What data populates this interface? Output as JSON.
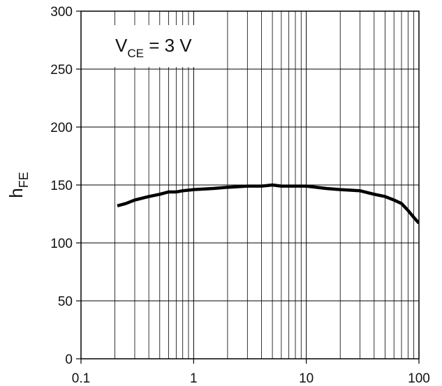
{
  "chart_data": {
    "type": "line",
    "title": "",
    "xlabel": "",
    "ylabel": {
      "main": "h",
      "sub": "FE"
    },
    "annotation": {
      "main": "V",
      "sub": "CE",
      "rest": " = 3 V"
    },
    "x_scale": "log",
    "xlim": [
      0.1,
      100
    ],
    "ylim": [
      0,
      300
    ],
    "x_ticks": [
      0.1,
      1,
      10,
      100
    ],
    "x_tick_labels": [
      "0.1",
      "1",
      "10",
      "100"
    ],
    "y_ticks": [
      0,
      50,
      100,
      150,
      200,
      250,
      300
    ],
    "y_tick_labels": [
      "0",
      "50",
      "100",
      "150",
      "200",
      "250",
      "300"
    ],
    "grid": true,
    "series": [
      {
        "x": [
          0.21,
          0.25,
          0.3,
          0.4,
          0.5,
          0.6,
          0.7,
          0.8,
          1,
          1.5,
          2,
          3,
          4,
          5,
          6,
          8,
          10,
          15,
          20,
          30,
          40,
          50,
          60,
          70,
          80,
          90,
          100
        ],
        "y": [
          132,
          134,
          137,
          140,
          142,
          144,
          144,
          145,
          146,
          147,
          148,
          149,
          149,
          150,
          149,
          149,
          149,
          147,
          146,
          145,
          142,
          140,
          137,
          134,
          128,
          122,
          117
        ]
      }
    ],
    "colors": {
      "line": "#000000",
      "grid": "#000000",
      "background": "#ffffff"
    }
  }
}
